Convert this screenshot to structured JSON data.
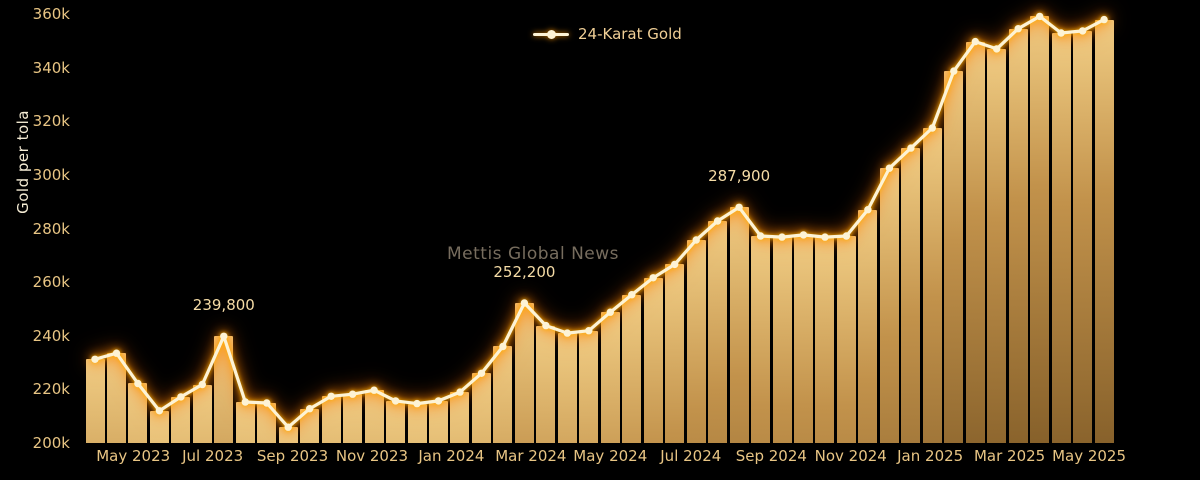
{
  "chart_data": {
    "type": "bar",
    "line_overlay": true,
    "title": "",
    "ylabel": "Gold per tola",
    "xlabel": "",
    "ylim": [
      200000,
      360000
    ],
    "grid": false,
    "legend_position": "top-center",
    "watermark": "Mettis Global News",
    "y_tick_values": [
      200000,
      220000,
      240000,
      260000,
      280000,
      300000,
      320000,
      340000,
      360000
    ],
    "y_tick_labels": [
      "200k",
      "220k",
      "240k",
      "260k",
      "280k",
      "300k",
      "320k",
      "340k",
      "360k"
    ],
    "x_tick_labels": [
      "May 2023",
      "Jul 2023",
      "Sep 2023",
      "Nov 2023",
      "Jan 2024",
      "Mar 2024",
      "May 2024",
      "Jul 2024",
      "Sep 2024",
      "Nov 2024",
      "Jan 2025",
      "Mar 2025",
      "May 2025"
    ],
    "x_tick_positions_index": [
      1.78,
      5.48,
      9.2,
      12.9,
      16.6,
      20.3,
      24.0,
      27.75,
      31.5,
      35.2,
      38.9,
      42.6,
      46.3
    ],
    "series": [
      {
        "name": "24-Karat Gold",
        "values": [
          231200,
          233500,
          222200,
          212000,
          217200,
          221800,
          239800,
          215300,
          214900,
          205900,
          212800,
          217400,
          218200,
          219700,
          215700,
          214700,
          215700,
          219000,
          226000,
          236000,
          252200,
          243800,
          241000,
          241900,
          248800,
          255300,
          261600,
          266600,
          275700,
          282800,
          287900,
          277200,
          276800,
          277600,
          276800,
          277200,
          287000,
          302500,
          310000,
          317500,
          338700,
          349700,
          347000,
          354500,
          359100,
          352900,
          353700,
          357900
        ]
      }
    ],
    "annotations": [
      {
        "index": 6,
        "label": "239,800"
      },
      {
        "index": 20,
        "label": "252,200"
      },
      {
        "index": 30,
        "label": "287,900"
      }
    ],
    "colors": {
      "background": "#000000",
      "bar_top": "#f1cd84",
      "bar_mid": "#c2924b",
      "bar_bottom": "#86602a",
      "line": "#fdf3d5",
      "glow": "#ff9d00",
      "axis_text": "#e8c584",
      "annotation_text": "#f5dca6",
      "y_axis_title_text": "#f5ecd4",
      "watermark_text": "#776d5e"
    }
  }
}
